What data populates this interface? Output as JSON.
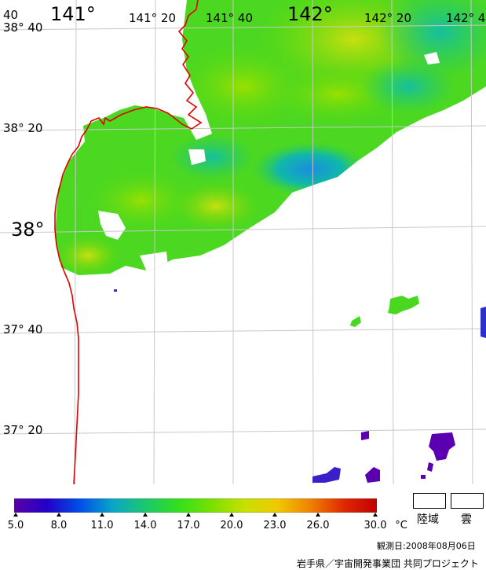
{
  "map": {
    "lon_labels": [
      "141°",
      "141° 20",
      "141° 40",
      "142°",
      "142° 20",
      "142° 4"
    ],
    "lat_labels": [
      "38° 40",
      "38° 20",
      "38°",
      "37° 40",
      "37° 20"
    ],
    "top_left_corner_label": "40",
    "sst_colormap": [
      "#5a00a8",
      "#2200c8",
      "#0050e8",
      "#0aa6c8",
      "#1cc86a",
      "#34e01c",
      "#7ae000",
      "#c8e000",
      "#f0c800",
      "#f08000",
      "#e02800",
      "#c00000"
    ],
    "land_color": "#ffffff",
    "coastline_color": "#e00000",
    "cloud_color": "#ffffff",
    "grid_color": "#cccccc"
  },
  "legend": {
    "scale_min": 5.0,
    "scale_max": 30.0,
    "ticks": [
      "5.0",
      "8.0",
      "11.0",
      "14.0",
      "17.0",
      "20.0",
      "23.0",
      "26.0",
      "30.0"
    ],
    "unit": "°C",
    "land_label": "陸域",
    "cloud_label": "雲"
  },
  "footer": {
    "observation_date": "観測日:2008年08月06日",
    "credits": "岩手県／宇宙開発事業団 共同プロジェクト"
  }
}
